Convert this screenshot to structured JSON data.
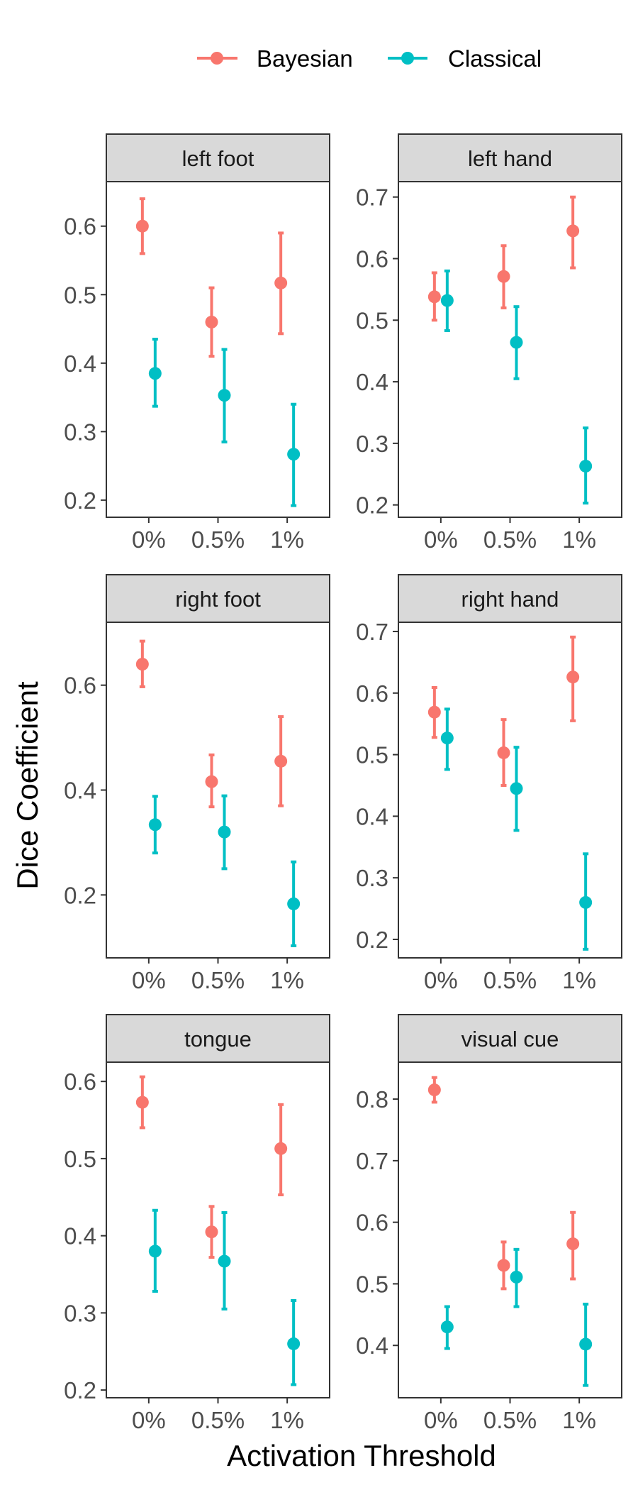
{
  "chart_data": {
    "type": "scatter",
    "layout": "faceted 3x2, point estimates with error bars",
    "xlabel": "Activation Threshold",
    "ylabel": "Dice Coefficient",
    "categories": [
      "0%",
      "0.5%",
      "1%"
    ],
    "legend": {
      "placement": "top",
      "entries": [
        {
          "name": "Bayesian",
          "color": "#F8766D"
        },
        {
          "name": "Classical",
          "color": "#00BFC4"
        }
      ]
    },
    "grid": false,
    "facets": [
      {
        "title": "left foot",
        "ylim": [
          0.175,
          0.665
        ],
        "yticks": [
          0.2,
          0.3,
          0.4,
          0.5,
          0.6
        ],
        "ytick_labels": [
          "0.2",
          "0.3",
          "0.4",
          "0.5",
          "0.6"
        ],
        "series": [
          {
            "name": "Bayesian",
            "values": [
              0.6,
              0.46,
              0.517
            ],
            "lower": [
              0.56,
              0.41,
              0.443
            ],
            "upper": [
              0.64,
              0.51,
              0.59
            ]
          },
          {
            "name": "Classical",
            "values": [
              0.385,
              0.353,
              0.267
            ],
            "lower": [
              0.337,
              0.285,
              0.192
            ],
            "upper": [
              0.435,
              0.42,
              0.34
            ]
          }
        ]
      },
      {
        "title": "left hand",
        "ylim": [
          0.18,
          0.725
        ],
        "yticks": [
          0.2,
          0.3,
          0.4,
          0.5,
          0.6,
          0.7
        ],
        "ytick_labels": [
          "0.2",
          "0.3",
          "0.4",
          "0.5",
          "0.6",
          "0.7"
        ],
        "series": [
          {
            "name": "Bayesian",
            "values": [
              0.538,
              0.571,
              0.645
            ],
            "lower": [
              0.5,
              0.52,
              0.585
            ],
            "upper": [
              0.577,
              0.621,
              0.7
            ]
          },
          {
            "name": "Classical",
            "values": [
              0.532,
              0.464,
              0.263
            ],
            "lower": [
              0.483,
              0.405,
              0.203
            ],
            "upper": [
              0.58,
              0.522,
              0.325
            ]
          }
        ]
      },
      {
        "title": "right foot",
        "ylim": [
          0.08,
          0.72
        ],
        "yticks": [
          0.2,
          0.4,
          0.6
        ],
        "ytick_labels": [
          "0.2",
          "0.4",
          "0.6"
        ],
        "series": [
          {
            "name": "Bayesian",
            "values": [
              0.64,
              0.416,
              0.455
            ],
            "lower": [
              0.597,
              0.368,
              0.37
            ],
            "upper": [
              0.684,
              0.467,
              0.54
            ]
          },
          {
            "name": "Classical",
            "values": [
              0.334,
              0.32,
              0.183
            ],
            "lower": [
              0.28,
              0.25,
              0.103
            ],
            "upper": [
              0.388,
              0.389,
              0.263
            ]
          }
        ]
      },
      {
        "title": "right hand",
        "ylim": [
          0.17,
          0.715
        ],
        "yticks": [
          0.2,
          0.3,
          0.4,
          0.5,
          0.6,
          0.7
        ],
        "ytick_labels": [
          "0.2",
          "0.3",
          "0.4",
          "0.5",
          "0.6",
          "0.7"
        ],
        "series": [
          {
            "name": "Bayesian",
            "values": [
              0.569,
              0.503,
              0.626
            ],
            "lower": [
              0.528,
              0.45,
              0.555
            ],
            "upper": [
              0.609,
              0.557,
              0.691
            ]
          },
          {
            "name": "Classical",
            "values": [
              0.527,
              0.445,
              0.26
            ],
            "lower": [
              0.476,
              0.377,
              0.184
            ],
            "upper": [
              0.574,
              0.512,
              0.339
            ]
          }
        ]
      },
      {
        "title": "tongue",
        "ylim": [
          0.19,
          0.625
        ],
        "yticks": [
          0.2,
          0.3,
          0.4,
          0.5,
          0.6
        ],
        "ytick_labels": [
          "0.2",
          "0.3",
          "0.4",
          "0.5",
          "0.6"
        ],
        "series": [
          {
            "name": "Bayesian",
            "values": [
              0.573,
              0.405,
              0.513
            ],
            "lower": [
              0.54,
              0.372,
              0.453
            ],
            "upper": [
              0.606,
              0.438,
              0.57
            ]
          },
          {
            "name": "Classical",
            "values": [
              0.38,
              0.367,
              0.26
            ],
            "lower": [
              0.328,
              0.305,
              0.207
            ],
            "upper": [
              0.433,
              0.43,
              0.316
            ]
          }
        ]
      },
      {
        "title": "visual cue",
        "ylim": [
          0.315,
          0.86
        ],
        "yticks": [
          0.4,
          0.5,
          0.6,
          0.7,
          0.8
        ],
        "ytick_labels": [
          "0.4",
          "0.5",
          "0.6",
          "0.7",
          "0.8"
        ],
        "series": [
          {
            "name": "Bayesian",
            "values": [
              0.815,
              0.53,
              0.565
            ],
            "lower": [
              0.795,
              0.492,
              0.508
            ],
            "upper": [
              0.835,
              0.568,
              0.616
            ]
          },
          {
            "name": "Classical",
            "values": [
              0.43,
              0.511,
              0.402
            ],
            "lower": [
              0.395,
              0.463,
              0.335
            ],
            "upper": [
              0.463,
              0.556,
              0.467
            ]
          }
        ]
      }
    ]
  }
}
